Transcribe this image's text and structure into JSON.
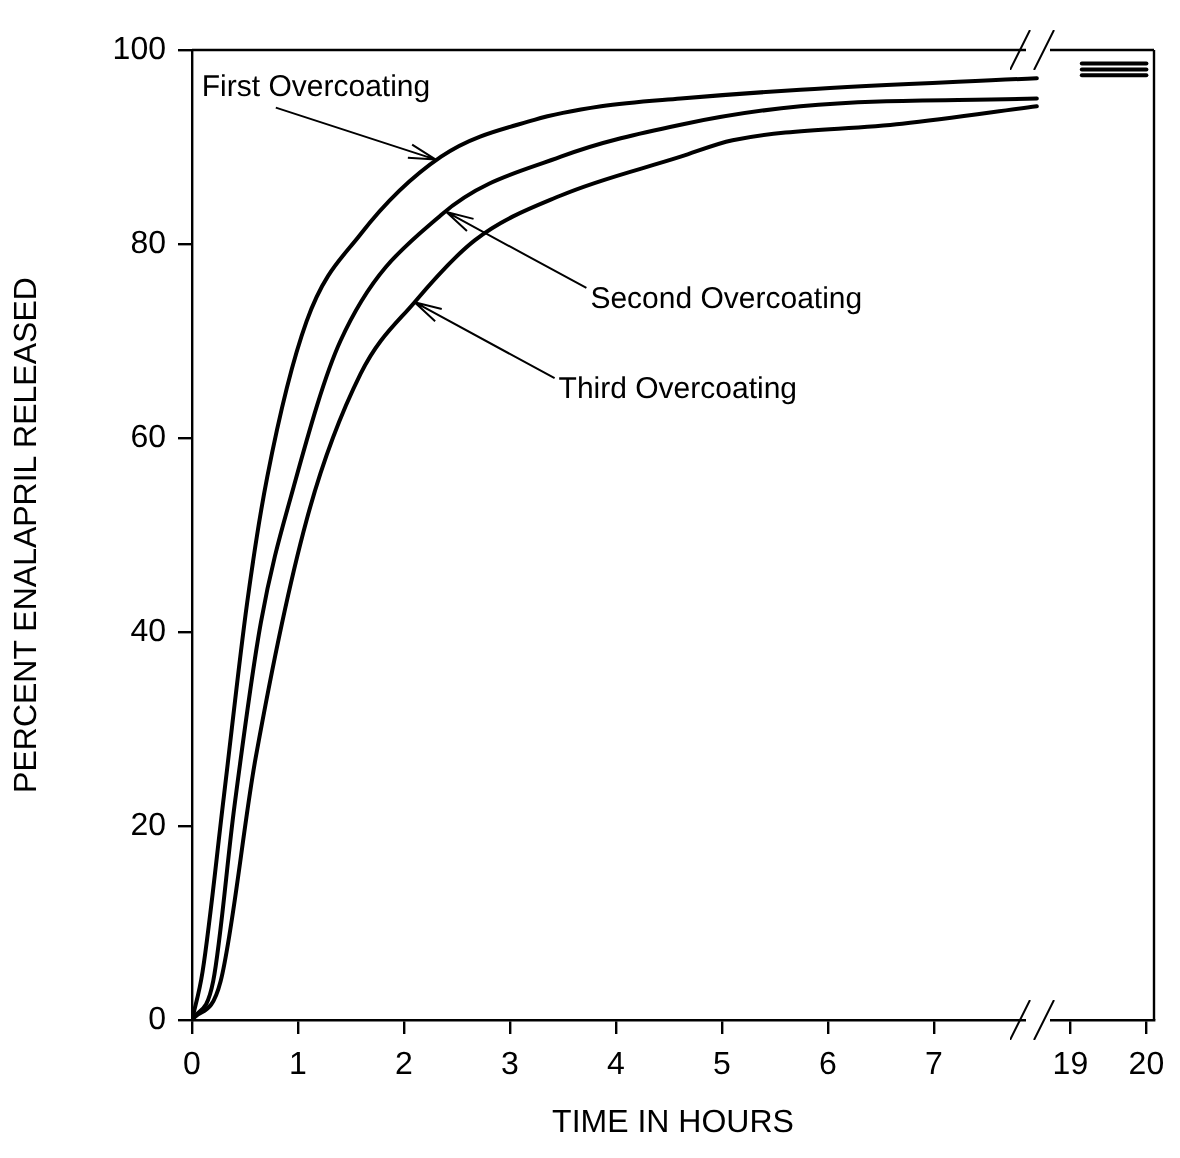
{
  "chart_data": [
    {
      "type": "line",
      "xlabel": "TIME IN HOURS",
      "ylabel": "PERCENT ENALAPRIL RELEASED",
      "xlim": [
        0,
        8
      ],
      "xticks": [
        0,
        1,
        2,
        3,
        4,
        5,
        6,
        7
      ],
      "ylim": [
        0,
        100
      ],
      "yticks": [
        0,
        20,
        40,
        60,
        80,
        100
      ],
      "grid": false,
      "legend": false,
      "marker": "none",
      "line_style": "solid",
      "series": [
        {
          "color": "#000000",
          "x": [
            0,
            0.1,
            0.3,
            0.52,
            0.71,
            1.08,
            1.59,
            2.35,
            3.23,
            3.86,
            4.61,
            5.74,
            7.97
          ],
          "values": [
            0,
            5,
            23,
            43,
            56,
            72,
            81,
            89,
            92.8,
            94.2,
            95,
            95.9,
            97.1
          ]
        },
        {
          "color": "#000000",
          "x": [
            0,
            0.2,
            0.4,
            0.65,
            0.96,
            1.4,
            2.35,
            3.48,
            4.61,
            5.74,
            7.97
          ],
          "values": [
            0,
            4,
            22,
            41,
            55,
            70,
            83,
            89,
            92.3,
            94.2,
            95
          ]
        },
        {
          "color": "#000000",
          "x": [
            0,
            0.27,
            0.6,
            1.08,
            1.59,
            2.1,
            2.67,
            3.48,
            4.61,
            5.1,
            6.7,
            7.97
          ],
          "values": [
            0,
            4,
            27,
            51.5,
            66.6,
            74,
            80.4,
            85,
            89,
            90.7,
            92.4,
            94.2
          ]
        }
      ],
      "annotations": [
        {
          "text": "First Overcoating",
          "x": 2.3,
          "y": 88.7
        },
        {
          "text": "Second Overcoating",
          "x": 2.4,
          "y": 83.3
        },
        {
          "text": "Third Overcoating",
          "x": 2.1,
          "y": 74
        }
      ]
    },
    {
      "type": "line",
      "xlim": [
        18.6,
        20.1
      ],
      "xticks": [
        19,
        20
      ],
      "ylim": [
        0,
        100
      ],
      "yticks": [
        0,
        20,
        40,
        60,
        80,
        100
      ],
      "tick_labels": "x",
      "grid": false,
      "legend": false,
      "marker": "none",
      "line_style": "solid",
      "series": [
        {
          "color": "#000000",
          "x": [
            19.15,
            19.55,
            20
          ],
          "values": [
            98.6,
            98.6,
            98.6
          ]
        },
        {
          "color": "#000000",
          "x": [
            19.15,
            19.55,
            20
          ],
          "values": [
            98,
            98,
            98
          ]
        },
        {
          "color": "#000000",
          "x": [
            19.15,
            19.55,
            20
          ],
          "values": [
            97.4,
            97.4,
            97.4
          ]
        }
      ]
    }
  ]
}
